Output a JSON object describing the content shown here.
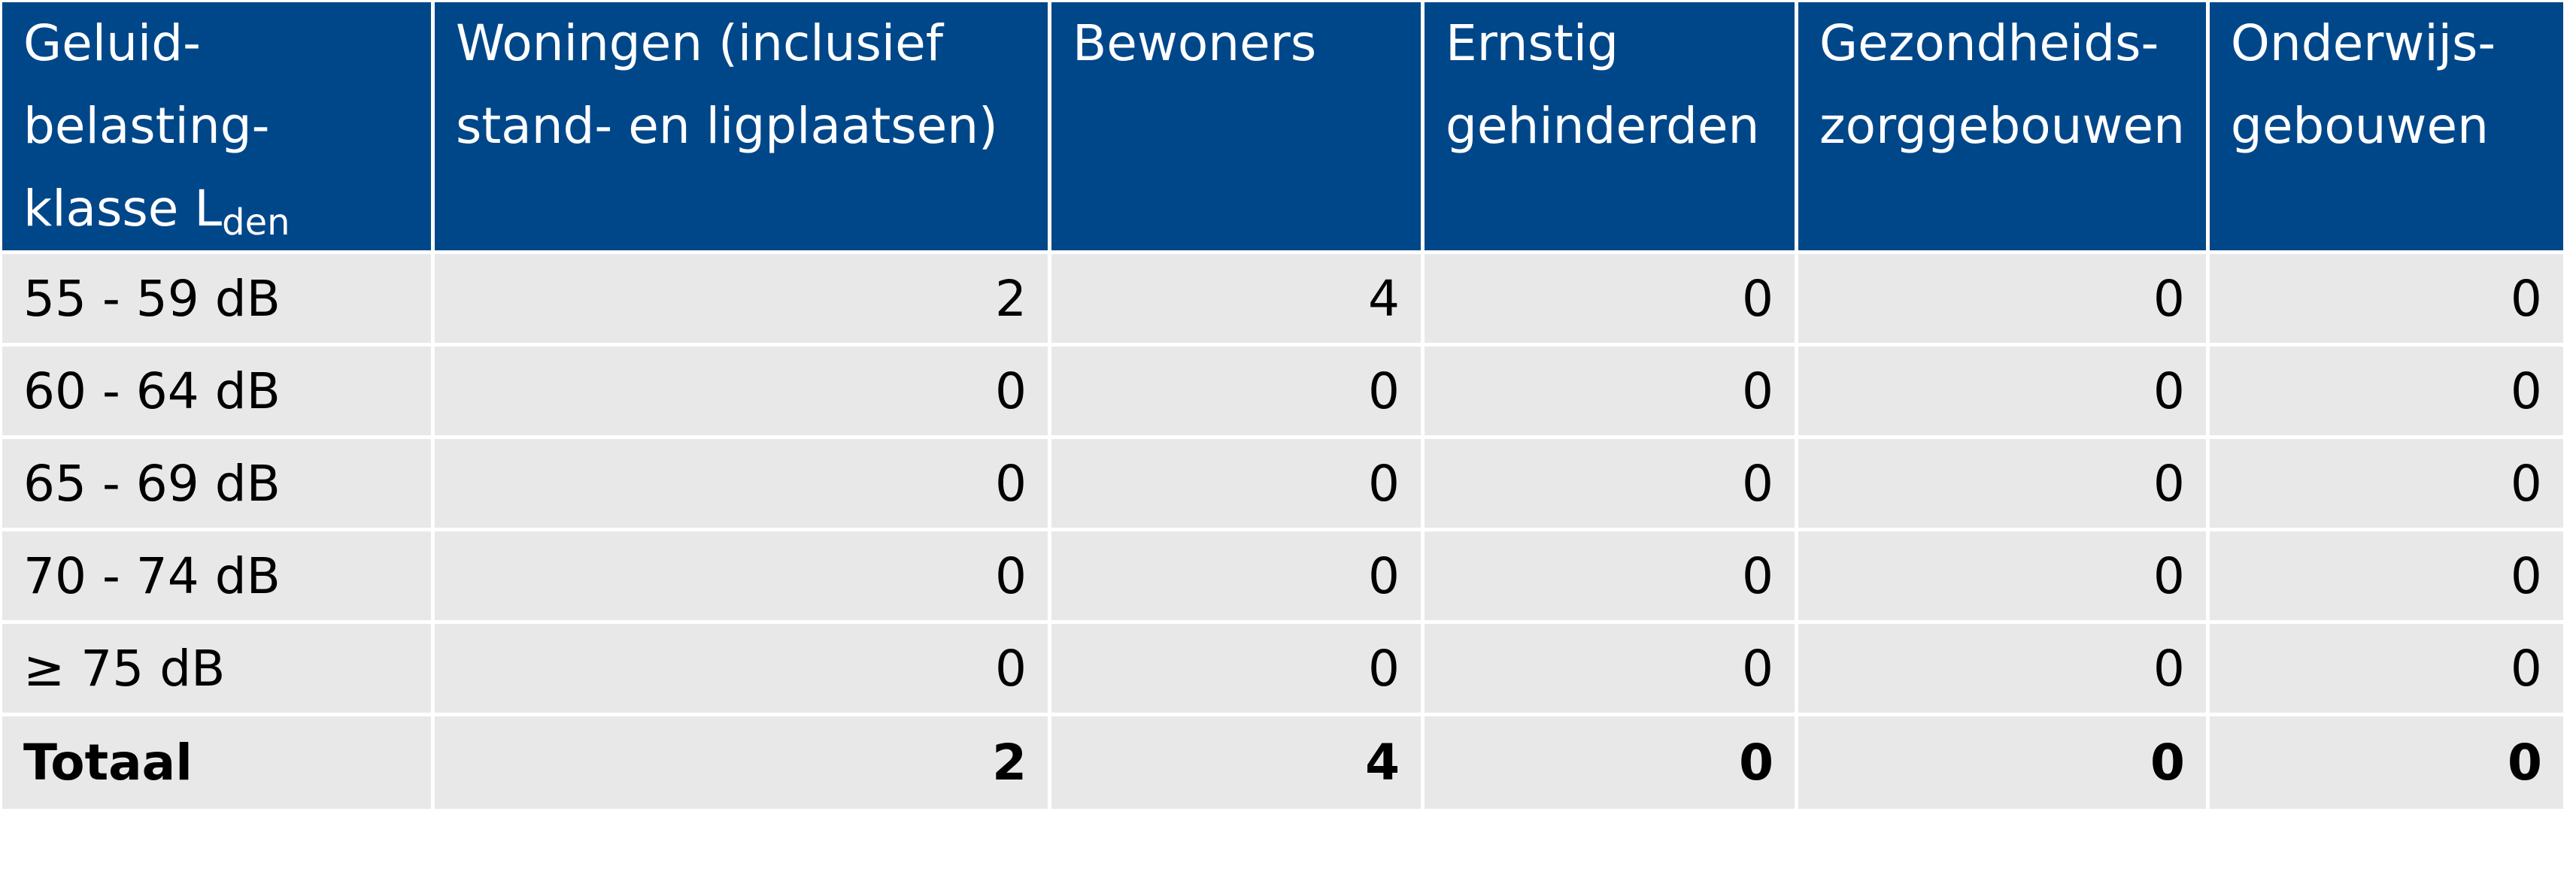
{
  "table": {
    "headers": {
      "klasse_main": "Geluid-\nbelasting-\nklasse L",
      "klasse_sub": "den",
      "woningen": "Woningen (inclusief\nstand- en ligplaatsen)",
      "bewoners": "Bewoners",
      "gehinderden": "Ernstig\ngehinderden",
      "zorggebouwen": "Gezondheids-\nzorggebouwen",
      "onderwijs": "Onderwijs-\ngebouwen"
    },
    "rows": [
      {
        "klasse": "55 - 59 dB",
        "woningen": "2",
        "bewoners": "4",
        "gehinderden": "0",
        "zorggebouwen": "0",
        "onderwijs": "0"
      },
      {
        "klasse": "60 - 64 dB",
        "woningen": "0",
        "bewoners": "0",
        "gehinderden": "0",
        "zorggebouwen": "0",
        "onderwijs": "0"
      },
      {
        "klasse": "65 - 69 dB",
        "woningen": "0",
        "bewoners": "0",
        "gehinderden": "0",
        "zorggebouwen": "0",
        "onderwijs": "0"
      },
      {
        "klasse": "70 - 74 dB",
        "woningen": "0",
        "bewoners": "0",
        "gehinderden": "0",
        "zorggebouwen": "0",
        "onderwijs": "0"
      },
      {
        "klasse": "≥ 75 dB",
        "woningen": "0",
        "bewoners": "0",
        "gehinderden": "0",
        "zorggebouwen": "0",
        "onderwijs": "0"
      }
    ],
    "total": {
      "klasse": "Totaal",
      "woningen": "2",
      "bewoners": "4",
      "gehinderden": "0",
      "zorggebouwen": "0",
      "onderwijs": "0"
    }
  },
  "colors": {
    "header_bg": "#00478a",
    "header_text": "#ffffff",
    "body_bg": "#e8e8e8",
    "grid": "#ffffff"
  }
}
